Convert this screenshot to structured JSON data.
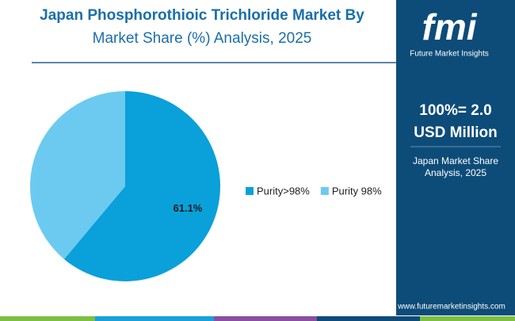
{
  "chart_data": {
    "type": "pie",
    "title": "Japan Phosphorothioic Trichloride Market By",
    "subtitle": "Market Share (%) Analysis, 2025",
    "categories": [
      "Purity>98%",
      "Purity 98%"
    ],
    "values": [
      61.1,
      38.9
    ],
    "value_labels": [
      "61.1%",
      null
    ],
    "colors": [
      "#0aa0da",
      "#6ccaf0"
    ]
  },
  "panel": {
    "logo": "fmi",
    "brand": "Future Market Insights",
    "total": "100%= 2.0",
    "unit": "USD Million",
    "caption_lines": [
      "Japan Market Share",
      "Analysis, 2025"
    ],
    "url": "www.futuremarketinsights.com"
  }
}
